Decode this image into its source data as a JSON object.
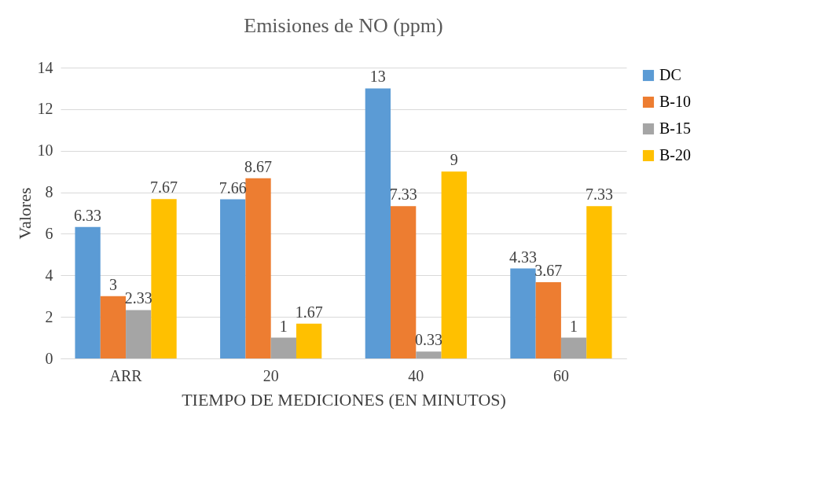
{
  "chart_data": {
    "type": "bar",
    "title": "Emisiones de NO (ppm)",
    "xlabel": "TIEMPO DE MEDICIONES (EN MINUTOS)",
    "ylabel": "Valores",
    "categories": [
      "ARR",
      "20",
      "40",
      "60"
    ],
    "series": [
      {
        "name": "DC",
        "color": "#5b9bd5",
        "values": [
          6.33,
          7.66,
          13,
          4.33
        ]
      },
      {
        "name": "B-10",
        "color": "#ed7d31",
        "values": [
          3,
          8.67,
          7.33,
          3.67
        ]
      },
      {
        "name": "B-15",
        "color": "#a5a5a5",
        "values": [
          2.33,
          1,
          0.33,
          1
        ]
      },
      {
        "name": "B-20",
        "color": "#ffc000",
        "values": [
          7.67,
          1.67,
          9,
          7.33
        ]
      }
    ],
    "ylim": [
      0,
      14
    ],
    "yticks": [
      0,
      2,
      4,
      6,
      8,
      10,
      12,
      14
    ],
    "grid": "y",
    "legend": "right",
    "data_labels": true
  }
}
